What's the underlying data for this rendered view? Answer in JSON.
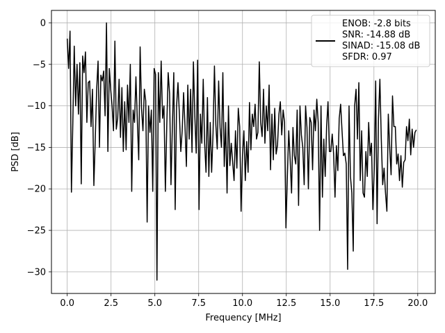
{
  "chart_data": {
    "type": "line",
    "xlabel": "Frequency [MHz]",
    "ylabel": "PSD [dB]",
    "xlim": [
      -0.9,
      21.0
    ],
    "ylim": [
      -32.6,
      1.5
    ],
    "xticks": [
      0.0,
      2.5,
      5.0,
      7.5,
      10.0,
      12.5,
      15.0,
      17.5,
      20.0
    ],
    "xtick_labels": [
      "0.0",
      "2.5",
      "5.0",
      "7.5",
      "10.0",
      "12.5",
      "15.0",
      "17.5",
      "20.0"
    ],
    "yticks": [
      0,
      -5,
      -10,
      -15,
      -20,
      -25,
      -30
    ],
    "ytick_labels": [
      "0",
      "−5",
      "−10",
      "−15",
      "−20",
      "−25",
      "−30"
    ],
    "grid": true,
    "legend_position": "top-right",
    "legend_entries": [
      "ENOB: -2.8 bits",
      "SNR: -14.88 dB",
      "SINAD: -15.08 dB",
      "SFDR: 0.97"
    ],
    "series": [
      {
        "color": "#000000",
        "x": [
          0.0,
          0.08,
          0.16,
          0.24,
          0.32,
          0.4,
          0.48,
          0.56,
          0.64,
          0.72,
          0.8,
          0.88,
          0.96,
          1.04,
          1.12,
          1.2,
          1.28,
          1.36,
          1.44,
          1.52,
          1.6,
          1.68,
          1.76,
          1.84,
          1.92,
          2.0,
          2.08,
          2.16,
          2.24,
          2.32,
          2.4,
          2.48,
          2.56,
          2.64,
          2.72,
          2.8,
          2.88,
          2.96,
          3.04,
          3.12,
          3.2,
          3.28,
          3.36,
          3.44,
          3.52,
          3.6,
          3.68,
          3.76,
          3.84,
          3.92,
          4.0,
          4.08,
          4.16,
          4.24,
          4.32,
          4.4,
          4.48,
          4.56,
          4.64,
          4.72,
          4.8,
          4.88,
          4.96,
          5.04,
          5.12,
          5.2,
          5.28,
          5.36,
          5.44,
          5.52,
          5.6,
          5.68,
          5.76,
          5.84,
          5.92,
          6.0,
          6.08,
          6.16,
          6.24,
          6.32,
          6.4,
          6.48,
          6.56,
          6.64,
          6.72,
          6.8,
          6.88,
          6.96,
          7.04,
          7.12,
          7.2,
          7.28,
          7.36,
          7.44,
          7.52,
          7.6,
          7.68,
          7.76,
          7.84,
          7.92,
          8.0,
          8.08,
          8.16,
          8.24,
          8.32,
          8.4,
          8.48,
          8.56,
          8.64,
          8.72,
          8.8,
          8.88,
          8.96,
          9.04,
          9.12,
          9.2,
          9.28,
          9.36,
          9.44,
          9.52,
          9.6,
          9.68,
          9.76,
          9.84,
          9.92,
          10.0,
          10.08,
          10.16,
          10.24,
          10.32,
          10.4,
          10.48,
          10.56,
          10.64,
          10.72,
          10.8,
          10.88,
          10.96,
          11.04,
          11.12,
          11.2,
          11.28,
          11.36,
          11.44,
          11.52,
          11.6,
          11.68,
          11.76,
          11.84,
          11.92,
          12.0,
          12.08,
          12.16,
          12.24,
          12.32,
          12.4,
          12.48,
          12.56,
          12.64,
          12.72,
          12.8,
          12.88,
          12.96,
          13.04,
          13.12,
          13.2,
          13.28,
          13.36,
          13.44,
          13.52,
          13.6,
          13.68,
          13.76,
          13.84,
          13.92,
          14.0,
          14.08,
          14.16,
          14.24,
          14.32,
          14.4,
          14.48,
          14.56,
          14.64,
          14.72,
          14.8,
          14.88,
          14.96,
          15.04,
          15.12,
          15.2,
          15.28,
          15.36,
          15.44,
          15.52,
          15.6,
          15.68,
          15.76,
          15.84,
          15.92,
          16.0,
          16.08,
          16.16,
          16.24,
          16.32,
          16.4,
          16.48,
          16.56,
          16.64,
          16.72,
          16.8,
          16.88,
          16.96,
          17.04,
          17.12,
          17.2,
          17.28,
          17.36,
          17.44,
          17.52,
          17.6,
          17.68,
          17.76,
          17.84,
          17.92,
          18.0,
          18.08,
          18.16,
          18.24,
          18.32,
          18.4,
          18.48,
          18.56,
          18.64,
          18.72,
          18.8,
          18.88,
          18.96,
          19.04,
          19.12,
          19.2,
          19.28,
          19.36,
          19.44,
          19.52,
          19.6,
          19.68,
          19.76,
          19.84,
          19.92
        ],
        "y": [
          -1.9,
          -5.5,
          -1.0,
          -20.4,
          -12.0,
          -2.8,
          -10.0,
          -5.0,
          -11.0,
          -4.8,
          -19.4,
          -4.0,
          -6.0,
          -3.5,
          -12.0,
          -7.2,
          -7.0,
          -12.5,
          -8.0,
          -19.6,
          -14.0,
          -8.0,
          -4.6,
          -15.0,
          -6.3,
          -7.0,
          -5.8,
          -11.2,
          0.0,
          -15.5,
          -5.5,
          -8.0,
          -10.0,
          -13.0,
          -2.2,
          -12.8,
          -11.5,
          -6.8,
          -13.8,
          -7.8,
          -15.5,
          -9.5,
          -15.3,
          -7.5,
          -12.0,
          -5.0,
          -20.3,
          -10.5,
          -12.0,
          -6.5,
          -11.8,
          -16.5,
          -2.9,
          -10.3,
          -13.0,
          -8.0,
          -9.4,
          -24.0,
          -10.0,
          -13.2,
          -10.5,
          -20.3,
          -5.5,
          -6.2,
          -31.0,
          -6.0,
          -12.0,
          -4.6,
          -11.5,
          -10.0,
          -20.3,
          -12.4,
          -6.0,
          -8.5,
          -19.5,
          -12.5,
          -6.0,
          -22.5,
          -10.0,
          -7.2,
          -11.0,
          -15.5,
          -13.0,
          -8.4,
          -12.5,
          -17.3,
          -7.5,
          -14.0,
          -8.0,
          -15.6,
          -4.7,
          -11.2,
          -15.7,
          -4.5,
          -22.5,
          -11.0,
          -14.5,
          -6.8,
          -14.5,
          -18.0,
          -9.0,
          -18.5,
          -12.0,
          -18.0,
          -13.3,
          -5.2,
          -12.3,
          -15.2,
          -7.0,
          -12.6,
          -15.0,
          -6.0,
          -17.3,
          -12.0,
          -20.5,
          -10.0,
          -17.2,
          -14.5,
          -16.8,
          -19.0,
          -13.0,
          -17.5,
          -10.3,
          -12.5,
          -22.7,
          -16.0,
          -13.0,
          -19.0,
          -14.3,
          -18.0,
          -9.6,
          -15.3,
          -11.0,
          -12.5,
          -9.8,
          -14.0,
          -13.2,
          -4.7,
          -12.0,
          -13.7,
          -8.0,
          -14.5,
          -10.0,
          -13.0,
          -7.5,
          -17.7,
          -11.0,
          -16.5,
          -10.3,
          -15.8,
          -14.7,
          -11.0,
          -9.5,
          -13.5,
          -10.5,
          -12.0,
          -24.7,
          -18.5,
          -13.0,
          -16.5,
          -20.5,
          -12.6,
          -16.0,
          -17.0,
          -10.5,
          -22.0,
          -10.0,
          -13.5,
          -15.0,
          -19.5,
          -10.0,
          -12.6,
          -20.0,
          -11.4,
          -12.0,
          -17.7,
          -10.5,
          -13.0,
          -9.2,
          -12.0,
          -25.0,
          -10.0,
          -21.0,
          -14.0,
          -18.5,
          -12.5,
          -9.5,
          -15.5,
          -15.5,
          -13.4,
          -15.8,
          -21.0,
          -14.8,
          -17.8,
          -11.5,
          -9.8,
          -13.0,
          -16.0,
          -15.7,
          -17.0,
          -29.7,
          -10.0,
          -18.5,
          -20.5,
          -27.5,
          -10.0,
          -8.0,
          -14.0,
          -7.2,
          -19.0,
          -13.0,
          -20.5,
          -21.0,
          -15.5,
          -18.5,
          -12.0,
          -16.0,
          -14.5,
          -22.5,
          -17.5,
          -7.0,
          -24.2,
          -11.5,
          -6.8,
          -14.0,
          -19.5,
          -17.5,
          -20.5,
          -22.7,
          -11.0,
          -15.0,
          -18.3,
          -8.8,
          -12.5,
          -12.5,
          -17.0,
          -15.8,
          -19.0,
          -16.0,
          -19.8,
          -16.8,
          -16.5,
          -12.5,
          -14.2,
          -11.6,
          -15.9,
          -12.8,
          -15.0,
          -13.2,
          -12.9
        ]
      }
    ]
  }
}
